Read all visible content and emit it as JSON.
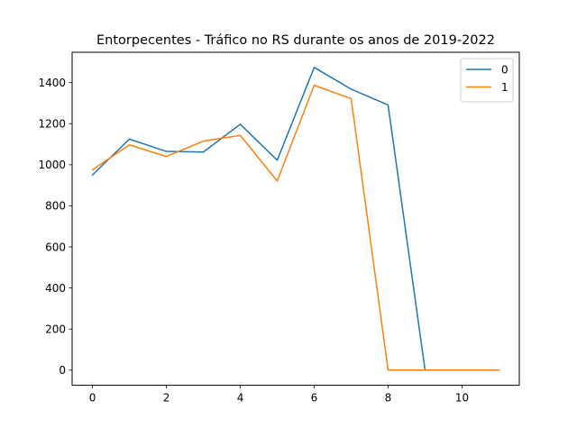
{
  "chart_data": {
    "type": "line",
    "title": "Entorpecentes - Tráfico no RS durante os anos de 2019-2022",
    "xlabel": "",
    "ylabel": "",
    "x": [
      0,
      1,
      2,
      3,
      4,
      5,
      6,
      7,
      8,
      9,
      10,
      11
    ],
    "xlim": [
      -0.55,
      11.55
    ],
    "ylim": [
      -73.7,
      1547.7
    ],
    "xticks": [
      0,
      2,
      4,
      6,
      8,
      10
    ],
    "yticks": [
      0,
      200,
      400,
      600,
      800,
      1000,
      1200,
      1400
    ],
    "grid": false,
    "legend_position": "top-right",
    "series": [
      {
        "name": "0",
        "color": "#1f77b4",
        "values": [
          950,
          1125,
          1065,
          1062,
          1197,
          1022,
          1474,
          1368,
          1291,
          0,
          0,
          0
        ]
      },
      {
        "name": "1",
        "color": "#ff7f0e",
        "values": [
          975,
          1097,
          1040,
          1115,
          1143,
          921,
          1387,
          1322,
          0,
          0,
          0,
          0
        ]
      }
    ]
  }
}
